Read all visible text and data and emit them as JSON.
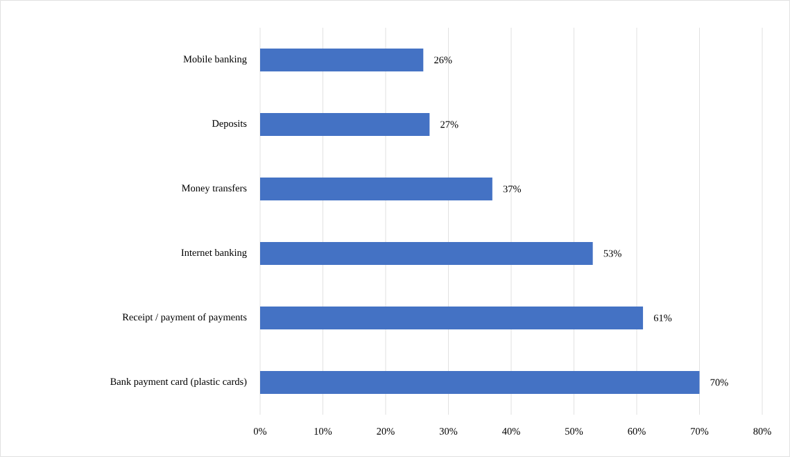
{
  "chart_data": {
    "type": "bar",
    "orientation": "horizontal",
    "categories": [
      "Mobile banking",
      "Deposits",
      "Money transfers",
      "Internet banking",
      "Receipt / payment of payments",
      "Bank payment card (plastic cards)"
    ],
    "values": [
      26,
      27,
      37,
      53,
      61,
      70
    ],
    "value_labels": [
      "26%",
      "27%",
      "37%",
      "53%",
      "61%",
      "70%"
    ],
    "color": "#4472c4",
    "xlim": [
      0,
      80
    ],
    "xticks": [
      {
        "value": 0,
        "label": "0%"
      },
      {
        "value": 10,
        "label": "10%"
      },
      {
        "value": 20,
        "label": "20%"
      },
      {
        "value": 30,
        "label": "30%"
      },
      {
        "value": 40,
        "label": "40%"
      },
      {
        "value": 50,
        "label": "50%"
      },
      {
        "value": 60,
        "label": "60%"
      },
      {
        "value": 70,
        "label": "70%"
      },
      {
        "value": 80,
        "label": "80%"
      }
    ],
    "grid": "x"
  }
}
